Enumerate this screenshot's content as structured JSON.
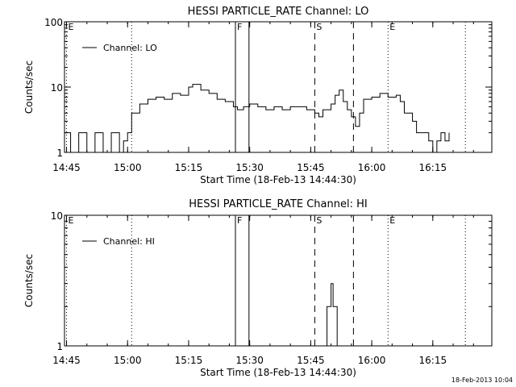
{
  "timestamp": "18-Feb-2013 10:04",
  "chart_data": [
    {
      "type": "line",
      "title": "HESSI PARTICLE_RATE Channel: LO",
      "xlabel": "Start Time (18-Feb-13 14:44:30)",
      "ylabel": "Counts/sec",
      "yscale": "log",
      "xlim": [
        "14:44:30",
        "16:29:30"
      ],
      "ylim": [
        1,
        100
      ],
      "xticks": [
        "14:45",
        "15:00",
        "15:15",
        "15:30",
        "15:45",
        "16:00",
        "16:15"
      ],
      "yticks": [
        1,
        10,
        100
      ],
      "legend": {
        "position": "top-left",
        "entries": [
          "Channel: LO"
        ]
      },
      "grid": false,
      "series": [
        {
          "name": "Channel: LO",
          "x": [
            "14:44:30",
            "14:46:00",
            "14:48:00",
            "14:50:00",
            "14:52:00",
            "14:54:00",
            "14:56:00",
            "14:58:00",
            "14:59:00",
            "15:00:00",
            "15:01:00",
            "15:02:00",
            "15:03:00",
            "15:05:00",
            "15:07:00",
            "15:09:00",
            "15:11:00",
            "15:13:00",
            "15:15:00",
            "15:16:00",
            "15:18:00",
            "15:20:00",
            "15:22:00",
            "15:24:00",
            "15:26:00",
            "15:27:00",
            "15:28:30",
            "15:30:00",
            "15:32:00",
            "15:34:00",
            "15:36:00",
            "15:38:00",
            "15:40:00",
            "15:42:00",
            "15:44:00",
            "15:46:00",
            "15:47:00",
            "15:48:00",
            "15:50:00",
            "15:51:00",
            "15:52:00",
            "15:53:00",
            "15:54:00",
            "15:55:00",
            "15:56:00",
            "15:57:00",
            "15:58:00",
            "16:00:00",
            "16:02:00",
            "16:04:00",
            "16:06:00",
            "16:07:00",
            "16:08:00",
            "16:10:00",
            "16:11:00",
            "16:12:00",
            "16:14:00",
            "16:15:00",
            "16:16:00",
            "16:17:00",
            "16:18:00",
            "16:19:00"
          ],
          "y": [
            2,
            1,
            2,
            1,
            2,
            1,
            2,
            1,
            1.5,
            2,
            4,
            4,
            5.5,
            6.5,
            7,
            6.5,
            8,
            7.5,
            10,
            11,
            9,
            8,
            6.5,
            6,
            5,
            4.5,
            5,
            5.5,
            5,
            4.5,
            5,
            4.5,
            5,
            5,
            4.5,
            4,
            3.5,
            4.5,
            5.5,
            7.5,
            9,
            6,
            4.5,
            3.5,
            2.5,
            4,
            6.5,
            7,
            8,
            7,
            7.5,
            6,
            4,
            3,
            2,
            2,
            1.5,
            1,
            1.5,
            2,
            1.5,
            2
          ]
        }
      ],
      "markers": [
        {
          "label": "E",
          "x": "14:45:00",
          "style": "dotted"
        },
        {
          "label": "",
          "x": "15:01:00",
          "style": "dotted"
        },
        {
          "label": "F",
          "x": "15:26:30",
          "style": "solid"
        },
        {
          "label": "",
          "x": "15:29:50",
          "style": "solid"
        },
        {
          "label": "S",
          "x": "15:46:00",
          "style": "dashed"
        },
        {
          "label": "",
          "x": "15:55:30",
          "style": "dashed"
        },
        {
          "label": "E",
          "x": "16:04:00",
          "style": "dotted"
        },
        {
          "label": "",
          "x": "16:23:00",
          "style": "dotted"
        }
      ]
    },
    {
      "type": "line",
      "title": "HESSI PARTICLE_RATE Channel: HI",
      "xlabel": "Start Time (18-Feb-13 14:44:30)",
      "ylabel": "Counts/sec",
      "yscale": "log",
      "xlim": [
        "14:44:30",
        "16:29:30"
      ],
      "ylim": [
        1,
        10
      ],
      "xticks": [
        "14:45",
        "15:00",
        "15:15",
        "15:30",
        "15:45",
        "16:00",
        "16:15"
      ],
      "yticks": [
        1,
        10
      ],
      "legend": {
        "position": "top-left",
        "entries": [
          "Channel: HI"
        ]
      },
      "grid": false,
      "series": [
        {
          "name": "Channel: HI",
          "x": [
            "15:48:00",
            "15:49:00",
            "15:50:00",
            "15:50:30",
            "15:51:00",
            "15:51:30"
          ],
          "y": [
            1,
            2,
            3,
            2,
            2,
            1
          ]
        }
      ],
      "markers": [
        {
          "label": "E",
          "x": "14:45:00",
          "style": "dotted"
        },
        {
          "label": "",
          "x": "15:01:00",
          "style": "dotted"
        },
        {
          "label": "F",
          "x": "15:26:30",
          "style": "solid"
        },
        {
          "label": "",
          "x": "15:29:50",
          "style": "solid"
        },
        {
          "label": "S",
          "x": "15:46:00",
          "style": "dashed"
        },
        {
          "label": "",
          "x": "15:55:30",
          "style": "dashed"
        },
        {
          "label": "E",
          "x": "16:04:00",
          "style": "dotted"
        },
        {
          "label": "",
          "x": "16:23:00",
          "style": "dotted"
        }
      ]
    }
  ]
}
